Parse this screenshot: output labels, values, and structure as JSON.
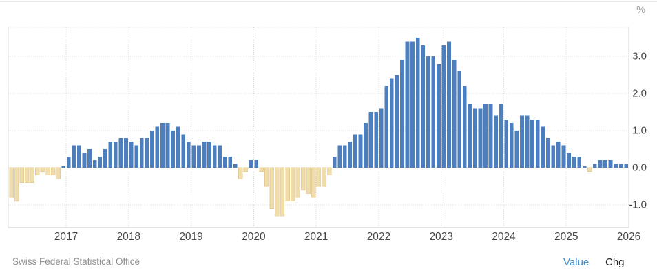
{
  "chart_meta": {
    "unit_label": "%"
  },
  "footer": {
    "source": "Swiss Federal Statistical Office",
    "value_label": "Value",
    "chg_label": "Chg"
  },
  "chart_data": {
    "type": "bar",
    "description": "Monthly inflation rate, year-over-year change in percent",
    "unit": "%",
    "x_tick_labels": [
      "2017",
      "2018",
      "2019",
      "2020",
      "2021",
      "2022",
      "2023",
      "2024",
      "2025",
      "2026"
    ],
    "y_ticks": [
      3,
      2,
      1,
      0,
      -1
    ],
    "y_tick_labels": [
      "3.0",
      "2.0",
      "1.0",
      "0.0",
      "-1.0"
    ],
    "ylim": [
      -1.61,
      3.78
    ],
    "grid": "dotted",
    "legend": "none",
    "axis_side": "right",
    "colors": {
      "positive_bar": "#4d7ebd",
      "negative_bar_fill": "#f1dcab",
      "negative_bar_stroke": "#e3cb96",
      "gridline": "#d6d6d6",
      "plot_border": "#dcdcdc",
      "axis_text": "#474747"
    },
    "series_by_year": [
      {
        "year": 2016,
        "start_month": 2,
        "values": [
          -0.8,
          -0.9,
          -0.4,
          -0.4,
          -0.4,
          -0.2,
          -0.1,
          -0.2,
          -0.2,
          -0.3,
          0.0
        ]
      },
      {
        "year": 2017,
        "start_month": 1,
        "values": [
          0.3,
          0.6,
          0.6,
          0.4,
          0.5,
          0.2,
          0.3,
          0.5,
          0.7,
          0.7,
          0.8,
          0.8
        ]
      },
      {
        "year": 2018,
        "start_month": 1,
        "values": [
          0.7,
          0.6,
          0.8,
          0.8,
          1.0,
          1.1,
          1.2,
          1.2,
          1.0,
          1.1,
          0.9,
          0.7
        ]
      },
      {
        "year": 2019,
        "start_month": 1,
        "values": [
          0.6,
          0.6,
          0.7,
          0.7,
          0.6,
          0.6,
          0.3,
          0.3,
          0.1,
          -0.3,
          -0.1,
          0.2
        ]
      },
      {
        "year": 2020,
        "start_month": 1,
        "values": [
          0.2,
          -0.1,
          -0.5,
          -1.1,
          -1.3,
          -1.3,
          -0.9,
          -0.9,
          -0.8,
          -0.6,
          -0.7,
          -0.8
        ]
      },
      {
        "year": 2021,
        "start_month": 1,
        "values": [
          -0.5,
          -0.5,
          -0.2,
          0.3,
          0.6,
          0.6,
          0.7,
          0.9,
          0.9,
          1.2,
          1.5,
          1.5
        ]
      },
      {
        "year": 2022,
        "start_month": 1,
        "values": [
          1.6,
          2.2,
          2.4,
          2.5,
          2.9,
          3.4,
          3.4,
          3.5,
          3.3,
          3.0,
          3.0,
          2.8
        ]
      },
      {
        "year": 2023,
        "start_month": 1,
        "values": [
          3.3,
          3.4,
          2.9,
          2.6,
          2.2,
          1.7,
          1.6,
          1.6,
          1.7,
          1.7,
          1.4,
          1.7
        ]
      },
      {
        "year": 2024,
        "start_month": 1,
        "values": [
          1.3,
          1.2,
          1.0,
          1.4,
          1.4,
          1.3,
          1.3,
          1.1,
          0.8,
          0.6,
          0.7,
          0.6
        ]
      },
      {
        "year": 2025,
        "start_month": 1,
        "values": [
          0.4,
          0.3,
          0.3,
          0.0,
          -0.1,
          0.1,
          0.2,
          0.2,
          0.2,
          0.1,
          0.1,
          0.1
        ]
      }
    ]
  }
}
